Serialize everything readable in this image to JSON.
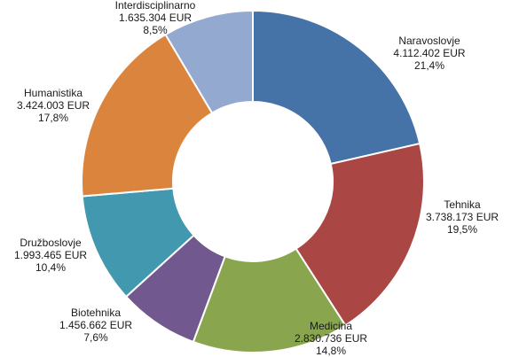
{
  "chart_data": {
    "type": "pie",
    "variant": "donut",
    "currency": "EUR",
    "legend": "none",
    "slices": [
      {
        "name": "Naravoslovje",
        "value_label": "4.112.402 EUR",
        "percent_label": "21,4%",
        "value": 4112402,
        "percent": 21.4,
        "color": "#4572A7"
      },
      {
        "name": "Tehnika",
        "value_label": "3.738.173 EUR",
        "percent_label": "19,5%",
        "value": 3738173,
        "percent": 19.5,
        "color": "#AA4643"
      },
      {
        "name": "Medicina",
        "value_label": "2.830.736 EUR",
        "percent_label": "14,8%",
        "value": 2830736,
        "percent": 14.8,
        "color": "#89A54E"
      },
      {
        "name": "Biotehnika",
        "value_label": "1.456.662 EUR",
        "percent_label": "7,6%",
        "value": 1456662,
        "percent": 7.6,
        "color": "#71588F"
      },
      {
        "name": "Družboslovje",
        "value_label": "1.993.465 EUR",
        "percent_label": "10,4%",
        "value": 1993465,
        "percent": 10.4,
        "color": "#4198AF"
      },
      {
        "name": "Humanistika",
        "value_label": "3.424.003 EUR",
        "percent_label": "17,8%",
        "value": 3424003,
        "percent": 17.8,
        "color": "#DB843D"
      },
      {
        "name": "Interdisciplinarno",
        "value_label": "1.635.304 EUR",
        "percent_label": "8,5%",
        "value": 1635304,
        "percent": 8.5,
        "color": "#93A9CF"
      }
    ]
  }
}
